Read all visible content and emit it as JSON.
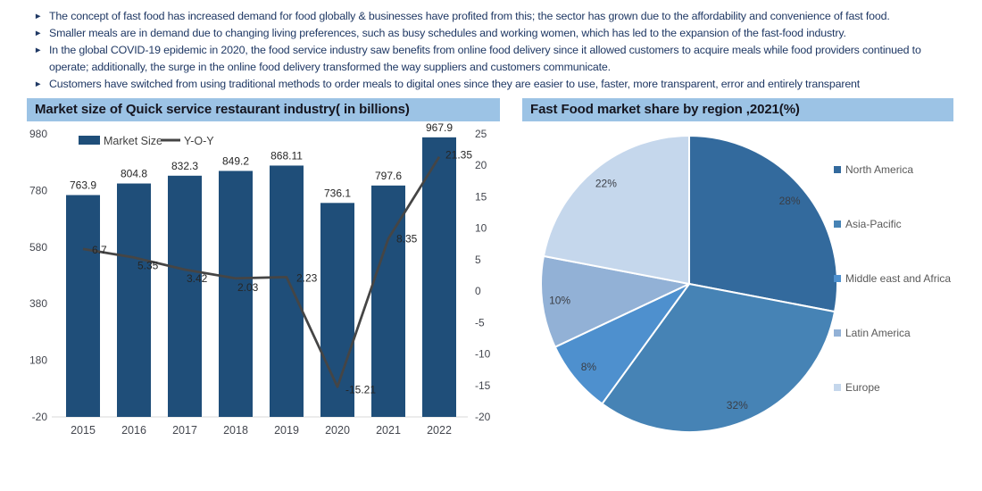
{
  "bullets": {
    "marker": "►",
    "items": [
      "The concept of fast food has increased demand for food globally & businesses have profited from this; the sector has grown due to the affordability and convenience of fast food.",
      "Smaller meals are in demand due to changing living preferences, such as busy schedules and working women, which has led to the expansion of the fast-food industry.",
      "In the global COVID-19 epidemic in 2020, the food service industry saw benefits from online food delivery since it allowed customers to acquire meals while food providers continued to operate; additionally, the surge in the online food delivery transformed the way suppliers and customers communicate.",
      "Customers have switched from using traditional methods to order meals to digital ones since they are easier to use, faster, more transparent, error and entirely transparent"
    ]
  },
  "theme": {
    "title_bar_bg": "#9CC3E5",
    "title_text": "#15151F",
    "bullet_text": "#1F3864",
    "axis_line": "#D9D9D9",
    "bar_color": "#1F4E79",
    "line_color": "#454545"
  },
  "chart_data": [
    {
      "type": "bar",
      "title": "Market size of Quick service restaurant industry( in billions)",
      "categories": [
        "2015",
        "2016",
        "2017",
        "2018",
        "2019",
        "2020",
        "2021",
        "2022"
      ],
      "series": [
        {
          "name": "Market Size",
          "type": "bar",
          "axis": "left",
          "color": "#1F4E79",
          "values": [
            763.9,
            804.8,
            832.3,
            849.2,
            868.11,
            736.1,
            797.6,
            967.9
          ]
        },
        {
          "name": "Y-O-Y",
          "type": "line",
          "axis": "right",
          "color": "#454545",
          "values": [
            6.7,
            5.35,
            3.42,
            2.03,
            2.23,
            -15.21,
            8.35,
            21.35
          ]
        }
      ],
      "left_axis": {
        "min": -20,
        "max": 980,
        "ticks": [
          980,
          780,
          580,
          380,
          180,
          -20
        ]
      },
      "right_axis": {
        "min": -20,
        "max": 25,
        "ticks": [
          25,
          20,
          15,
          10,
          5,
          0,
          -5,
          -10,
          -15,
          -20
        ]
      },
      "grid": false,
      "legend_position": "top-left"
    },
    {
      "type": "pie",
      "title": "Fast Food market share by region ,2021(%)",
      "labels": [
        "North America",
        "Asia-Pacific",
        "Middle east and Africa",
        "Latin America",
        "Europe"
      ],
      "values": [
        28,
        32,
        8,
        10,
        22
      ],
      "value_labels": [
        "28%",
        "32%",
        "8%",
        "10%",
        "22%"
      ],
      "colors": [
        "#336A9D",
        "#4683B5",
        "#4E90CE",
        "#92B1D6",
        "#C5D7EC"
      ],
      "start_angle_deg": 0,
      "direction": "clockwise",
      "legend_position": "right"
    }
  ]
}
